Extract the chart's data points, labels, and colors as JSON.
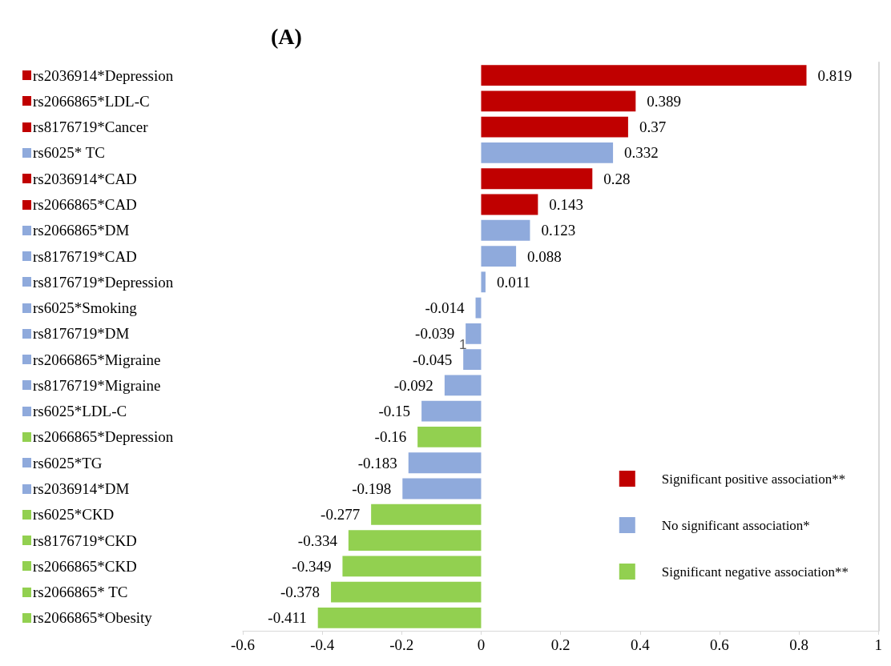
{
  "chart_data": {
    "type": "bar",
    "orientation": "horizontal",
    "stacked": true,
    "title": "(A)",
    "categories": [
      "rs2036914*Depression",
      "rs2066865*LDL-C",
      "rs8176719*Cancer",
      "rs6025* TC",
      "rs2036914*CAD",
      "rs2066865*CAD",
      "rs2066865*DM",
      "rs8176719*CAD",
      "rs8176719*Depression",
      "rs6025*Smoking",
      "rs8176719*DM",
      "rs2066865*Migraine",
      "rs8176719*Migraine",
      "rs6025*LDL-C",
      "rs2066865*Depression",
      "rs6025*TG",
      "rs2036914*DM",
      "rs6025*CKD",
      "rs8176719*CKD",
      "rs2066865*CKD",
      "rs2066865* TC",
      "rs2066865*Obesity"
    ],
    "series": [
      {
        "name": "Significant positive association**",
        "color": "#c00000",
        "values": [
          0.819,
          0.389,
          0.37,
          null,
          0.28,
          0.143,
          null,
          null,
          null,
          null,
          null,
          null,
          null,
          null,
          null,
          null,
          null,
          null,
          null,
          null,
          null,
          null
        ]
      },
      {
        "name": "No significant association*",
        "color": "#8faadc",
        "values": [
          null,
          null,
          null,
          0.332,
          null,
          null,
          0.123,
          0.088,
          0.011,
          -0.014,
          -0.039,
          -0.045,
          -0.092,
          -0.15,
          null,
          -0.183,
          -0.198,
          null,
          null,
          null,
          null,
          null
        ]
      },
      {
        "name": "Significant negative association**",
        "color": "#92d050",
        "values": [
          null,
          null,
          null,
          null,
          null,
          null,
          null,
          null,
          null,
          null,
          null,
          null,
          null,
          null,
          -0.16,
          null,
          null,
          -0.277,
          -0.334,
          -0.349,
          -0.378,
          -0.411
        ]
      }
    ],
    "xlim": [
      -0.6,
      1
    ],
    "xticks": [
      -0.6,
      -0.4,
      -0.2,
      0,
      0.2,
      0.4,
      0.6,
      0.8,
      1
    ],
    "data_labels": true,
    "legend": "right",
    "grid": false,
    "annotations": [
      "1"
    ]
  }
}
